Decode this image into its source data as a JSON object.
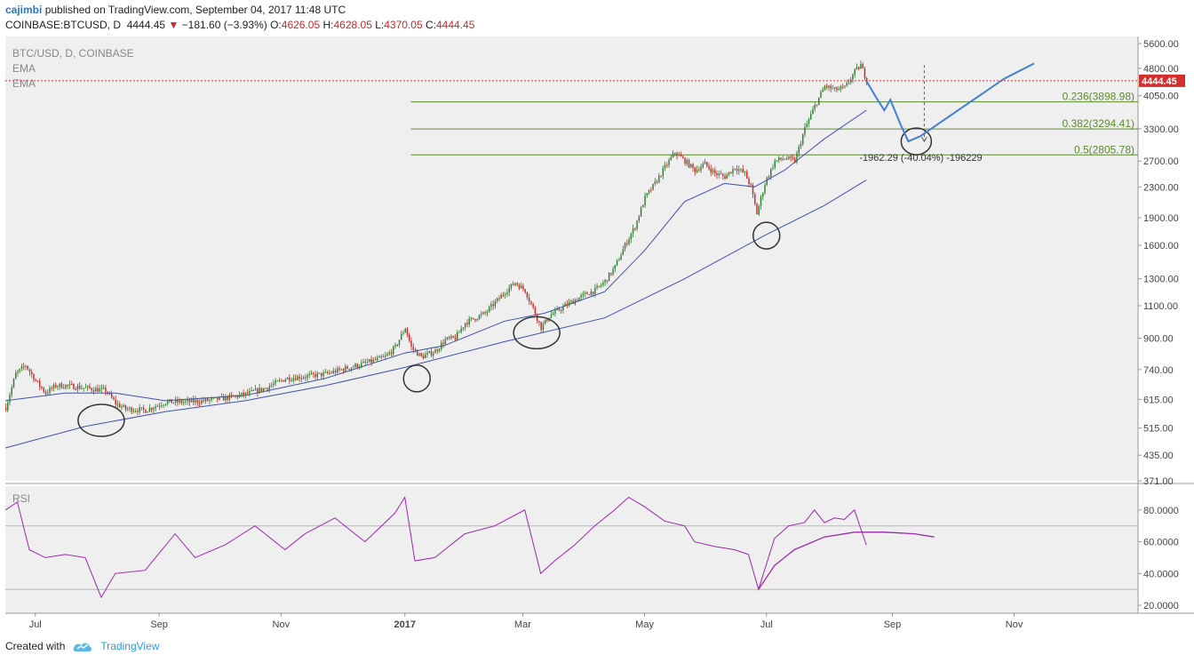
{
  "header": {
    "user": "cajimbi",
    "published": "published on TradingView.com, September 04, 2017 11:48 UTC",
    "symbol": "COINBASE:BTCUSD, D",
    "price": "4444.45",
    "change": "−181.60 (−3.93%)",
    "o_label": "O:",
    "o_value": "4626.05",
    "h_label": "H:",
    "h_value": "4628.05",
    "l_label": "L:",
    "l_value": "4370.05",
    "c_label": "C:",
    "c_value": "4444.45"
  },
  "legend": {
    "line1": "BTC/USD, D, COINBASE",
    "ema1": "EMA",
    "ema2": "EMA",
    "rsi": "RSI"
  },
  "footer": {
    "created": "Created with",
    "brand": "TradingView"
  },
  "colors": {
    "up": "#2e7d32",
    "down": "#c62828",
    "ema": "#3f51b5",
    "rsi": "#9c27b0",
    "fib": "#5a8a2a",
    "projection": "#3f7fd6",
    "price_badge": "#d32f2f"
  },
  "chart_data": [
    {
      "type": "line",
      "name": "price",
      "scale": "log",
      "ylim": [
        371,
        5600
      ],
      "y_ticks": [
        371,
        435,
        515,
        615,
        740,
        900,
        1100,
        1300,
        1600,
        1900,
        2300,
        2700,
        3300,
        4050,
        4800,
        5600
      ],
      "y_tick_labels": [
        "371.00",
        "435.00",
        "515.00",
        "615.00",
        "740.00",
        "900.00",
        "1100.00",
        "1300.00",
        "1600.00",
        "1900.00",
        "2300.00",
        "2700.00",
        "3300.00",
        "4050.00",
        "4800.00",
        "5600.00"
      ],
      "x_tick_labels": [
        "Jul",
        "Sep",
        "Nov",
        "2017",
        "Mar",
        "May",
        "Jul",
        "Sep",
        "Nov"
      ],
      "x_tick_days": [
        15,
        77,
        138,
        200,
        259,
        320,
        381,
        444,
        505
      ],
      "x_range_days": [
        0,
        567
      ],
      "last_price": 4444.45,
      "last_price_label": "4444.45",
      "close_points": [
        [
          0,
          585
        ],
        [
          5,
          720
        ],
        [
          10,
          760
        ],
        [
          15,
          690
        ],
        [
          20,
          640
        ],
        [
          25,
          670
        ],
        [
          30,
          670
        ],
        [
          40,
          660
        ],
        [
          50,
          650
        ],
        [
          55,
          600
        ],
        [
          60,
          580
        ],
        [
          70,
          575
        ],
        [
          75,
          590
        ],
        [
          80,
          605
        ],
        [
          90,
          605
        ],
        [
          100,
          610
        ],
        [
          110,
          620
        ],
        [
          120,
          635
        ],
        [
          130,
          660
        ],
        [
          140,
          700
        ],
        [
          150,
          710
        ],
        [
          160,
          720
        ],
        [
          170,
          745
        ],
        [
          180,
          770
        ],
        [
          190,
          800
        ],
        [
          195,
          850
        ],
        [
          200,
          960
        ],
        [
          203,
          850
        ],
        [
          208,
          800
        ],
        [
          215,
          830
        ],
        [
          220,
          890
        ],
        [
          225,
          900
        ],
        [
          230,
          990
        ],
        [
          240,
          1050
        ],
        [
          250,
          1200
        ],
        [
          255,
          1270
        ],
        [
          260,
          1210
        ],
        [
          265,
          1050
        ],
        [
          268,
          960
        ],
        [
          272,
          1030
        ],
        [
          280,
          1100
        ],
        [
          290,
          1180
        ],
        [
          295,
          1210
        ],
        [
          300,
          1280
        ],
        [
          305,
          1400
        ],
        [
          310,
          1600
        ],
        [
          315,
          1800
        ],
        [
          320,
          2150
        ],
        [
          325,
          2350
        ],
        [
          330,
          2600
        ],
        [
          335,
          2850
        ],
        [
          340,
          2700
        ],
        [
          345,
          2550
        ],
        [
          350,
          2650
        ],
        [
          355,
          2500
        ],
        [
          360,
          2450
        ],
        [
          365,
          2600
        ],
        [
          370,
          2500
        ],
        [
          373,
          2300
        ],
        [
          376,
          1950
        ],
        [
          380,
          2350
        ],
        [
          385,
          2700
        ],
        [
          390,
          2750
        ],
        [
          395,
          2700
        ],
        [
          400,
          3300
        ],
        [
          405,
          3800
        ],
        [
          410,
          4300
        ],
        [
          415,
          4200
        ],
        [
          420,
          4250
        ],
        [
          425,
          4700
        ],
        [
          428,
          4900
        ],
        [
          431,
          4444
        ]
      ],
      "ema_fast": [
        [
          0,
          610
        ],
        [
          30,
          640
        ],
        [
          55,
          640
        ],
        [
          80,
          610
        ],
        [
          120,
          630
        ],
        [
          160,
          700
        ],
        [
          200,
          820
        ],
        [
          220,
          860
        ],
        [
          250,
          1000
        ],
        [
          270,
          1050
        ],
        [
          300,
          1200
        ],
        [
          320,
          1550
        ],
        [
          340,
          2100
        ],
        [
          360,
          2350
        ],
        [
          375,
          2300
        ],
        [
          390,
          2550
        ],
        [
          410,
          3100
        ],
        [
          431,
          3700
        ]
      ],
      "ema_slow": [
        [
          0,
          455
        ],
        [
          40,
          520
        ],
        [
          80,
          570
        ],
        [
          120,
          610
        ],
        [
          160,
          670
        ],
        [
          200,
          750
        ],
        [
          250,
          880
        ],
        [
          300,
          1020
        ],
        [
          340,
          1300
        ],
        [
          380,
          1700
        ],
        [
          410,
          2050
        ],
        [
          431,
          2400
        ]
      ],
      "fib_levels": [
        {
          "label": "0.236(3898.98)",
          "value": 3898.98
        },
        {
          "label": "0.382(3294.41)",
          "value": 3294.41
        },
        {
          "label": "0.5(2805.78)",
          "value": 2805.78
        }
      ],
      "fib_start_day": 203,
      "measure_label": "-1962.29 (-40.04%) -196229",
      "projection": [
        [
          431,
          4444
        ],
        [
          436,
          4000
        ],
        [
          440,
          3700
        ],
        [
          443,
          3950
        ],
        [
          448,
          3400
        ],
        [
          452,
          3050
        ],
        [
          458,
          3150
        ],
        [
          480,
          3800
        ],
        [
          500,
          4500
        ],
        [
          515,
          4950
        ]
      ],
      "circles": [
        [
          48,
          540
        ],
        [
          206,
          700
        ],
        [
          266,
          930
        ],
        [
          381,
          1700
        ],
        [
          456,
          3050
        ]
      ]
    },
    {
      "type": "line",
      "name": "RSI",
      "ylim": [
        15,
        95
      ],
      "y_ticks": [
        20,
        40,
        60,
        80
      ],
      "y_tick_labels": [
        "20.0000",
        "40.0000",
        "60.0000",
        "80.0000"
      ],
      "bands": [
        30,
        70
      ],
      "points": [
        [
          0,
          80
        ],
        [
          6,
          85
        ],
        [
          12,
          55
        ],
        [
          20,
          50
        ],
        [
          30,
          52
        ],
        [
          40,
          50
        ],
        [
          48,
          25
        ],
        [
          55,
          40
        ],
        [
          70,
          42
        ],
        [
          85,
          65
        ],
        [
          95,
          50
        ],
        [
          110,
          58
        ],
        [
          125,
          70
        ],
        [
          140,
          55
        ],
        [
          150,
          65
        ],
        [
          165,
          75
        ],
        [
          180,
          60
        ],
        [
          195,
          78
        ],
        [
          200,
          88
        ],
        [
          205,
          48
        ],
        [
          215,
          50
        ],
        [
          230,
          65
        ],
        [
          245,
          70
        ],
        [
          260,
          80
        ],
        [
          268,
          40
        ],
        [
          275,
          48
        ],
        [
          285,
          58
        ],
        [
          295,
          70
        ],
        [
          305,
          80
        ],
        [
          312,
          88
        ],
        [
          320,
          82
        ],
        [
          330,
          73
        ],
        [
          340,
          70
        ],
        [
          345,
          60
        ],
        [
          355,
          57
        ],
        [
          365,
          55
        ],
        [
          372,
          52
        ],
        [
          377,
          30
        ],
        [
          385,
          62
        ],
        [
          392,
          70
        ],
        [
          400,
          72
        ],
        [
          405,
          80
        ],
        [
          410,
          72
        ],
        [
          415,
          75
        ],
        [
          420,
          74
        ],
        [
          425,
          80
        ],
        [
          431,
          58
        ]
      ],
      "arc": [
        [
          377,
          30
        ],
        [
          385,
          45
        ],
        [
          395,
          55
        ],
        [
          410,
          63
        ],
        [
          425,
          66
        ],
        [
          440,
          66
        ],
        [
          455,
          65
        ],
        [
          465,
          63
        ]
      ]
    }
  ]
}
